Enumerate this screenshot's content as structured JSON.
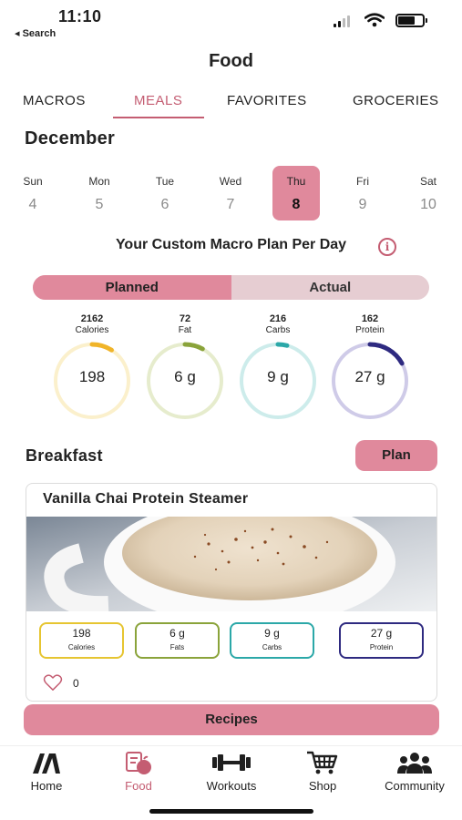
{
  "status": {
    "time": "11:10",
    "back_label": "◂ Search"
  },
  "header": {
    "title": "Food"
  },
  "tabs": [
    {
      "label": "MACROS",
      "active": false
    },
    {
      "label": "MEALS",
      "active": true
    },
    {
      "label": "FAVORITES",
      "active": false
    },
    {
      "label": "GROCERIES",
      "active": false
    }
  ],
  "calendar": {
    "month": "December",
    "days": [
      {
        "name": "Sun",
        "date": "4"
      },
      {
        "name": "Mon",
        "date": "5"
      },
      {
        "name": "Tue",
        "date": "6"
      },
      {
        "name": "Wed",
        "date": "7"
      },
      {
        "name": "Thu",
        "date": "8",
        "selected": true
      },
      {
        "name": "Fri",
        "date": "9"
      },
      {
        "name": "Sat",
        "date": "10"
      }
    ]
  },
  "plan": {
    "heading": "Your Custom Macro Plan Per Day",
    "info_icon": "i",
    "toggle": {
      "planned": "Planned",
      "actual": "Actual",
      "selected": "Planned"
    }
  },
  "macros": [
    {
      "target": "2162",
      "name": "Calories",
      "value": "198",
      "progress": 0.09,
      "color": "#f0b429",
      "track": "#fbf0cc"
    },
    {
      "target": "72",
      "name": "Fat",
      "value": "6 g",
      "progress": 0.08,
      "color": "#8aa33a",
      "track": "#e6eccd"
    },
    {
      "target": "216",
      "name": "Carbs",
      "value": "9 g",
      "progress": 0.04,
      "color": "#2ba8a8",
      "track": "#cdeceb"
    },
    {
      "target": "162",
      "name": "Protein",
      "value": "27 g",
      "progress": 0.17,
      "color": "#2e2a80",
      "track": "#cfcbe8"
    }
  ],
  "meal": {
    "title": "Breakfast",
    "plan_button": "Plan",
    "recipe": {
      "name": "Vanilla Chai Protein Steamer",
      "chips": [
        {
          "value": "198",
          "label": "Calories",
          "color": "#e6c531"
        },
        {
          "value": "6 g",
          "label": "Fats",
          "color": "#8aa33a"
        },
        {
          "value": "9 g",
          "label": "Carbs",
          "color": "#2ba8a8"
        },
        {
          "value": "27 g",
          "label": "Protein",
          "color": "#2e2a80"
        }
      ],
      "likes": "0"
    }
  },
  "recipes_button": "Recipes",
  "nav": [
    {
      "label": "Home",
      "icon": "home-logo-icon"
    },
    {
      "label": "Food",
      "icon": "food-icon",
      "active": true
    },
    {
      "label": "Workouts",
      "icon": "dumbbell-icon"
    },
    {
      "label": "Shop",
      "icon": "cart-icon"
    },
    {
      "label": "Community",
      "icon": "community-icon"
    }
  ],
  "colors": {
    "accent": "#e0899c",
    "accent_text": "#c45d72",
    "toggle_track": "#e6cdd2"
  }
}
